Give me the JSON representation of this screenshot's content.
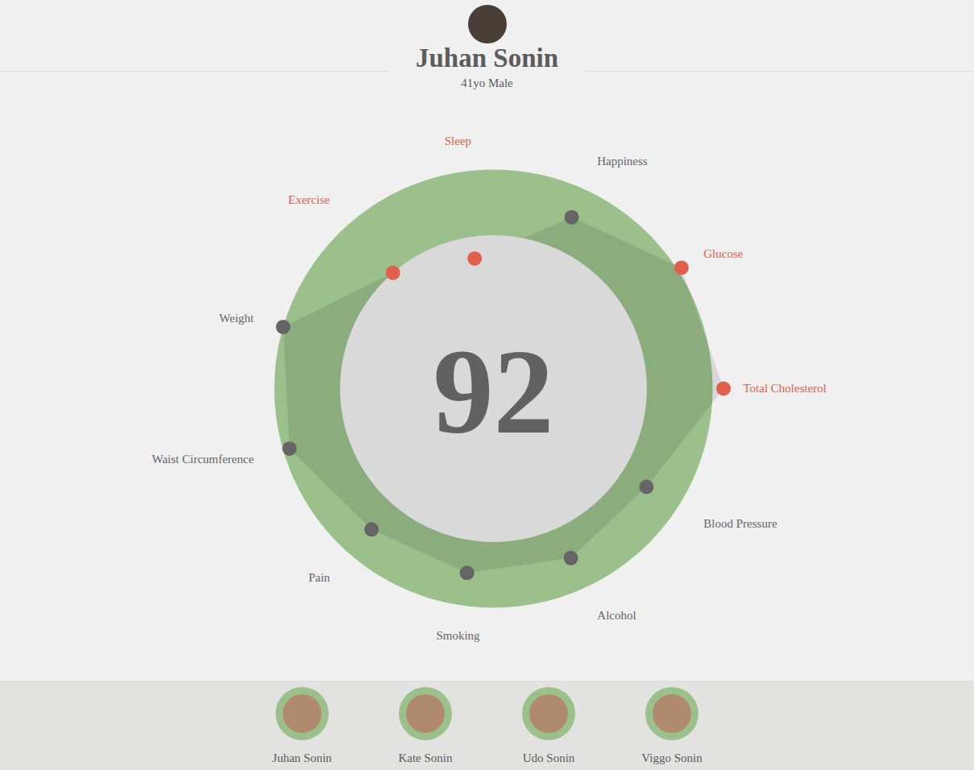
{
  "chart_data": {
    "type": "radar",
    "title": "Juhan Sonin",
    "subtitle": "41yo Male",
    "score": 92,
    "categories": [
      "Sleep",
      "Happiness",
      "Glucose",
      "Total Cholesterol",
      "Blood Pressure",
      "Alcohol",
      "Smoking",
      "Pain",
      "Waist Circumference",
      "Weight",
      "Exercise"
    ],
    "values": [
      60,
      86,
      102,
      105,
      83,
      85,
      85,
      85,
      97,
      100,
      70
    ],
    "colors": [
      "#e0604e",
      "#656565",
      "#e0604e",
      "#e0604e",
      "#656565",
      "#656565",
      "#656565",
      "#656565",
      "#656565",
      "#656565",
      "#e0604e"
    ],
    "target_range": [
      70,
      100
    ],
    "tick_labels": false
  },
  "footer": {
    "members": [
      "Juhan Sonin",
      "Kate Sonin",
      "Udo Sonin",
      "Viggo Sonin"
    ]
  }
}
